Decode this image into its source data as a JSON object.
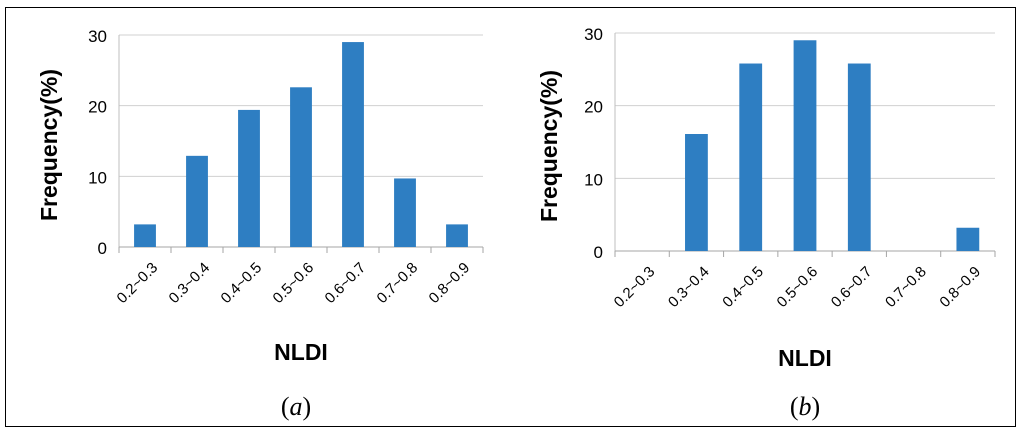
{
  "chart_data": [
    {
      "type": "bar",
      "categories": [
        "0.2~0.3",
        "0.3~0.4",
        "0.4~0.5",
        "0.5~0.6",
        "0.6~0.7",
        "0.7~0.8",
        "0.8~0.9"
      ],
      "values": [
        3.2,
        12.9,
        19.4,
        22.6,
        29.0,
        9.7,
        3.2
      ],
      "xlabel": "NLDI",
      "ylabel": "Frequency(%)",
      "ylim": [
        0,
        30
      ],
      "yticks": [
        "0",
        "10",
        "20",
        "30"
      ],
      "grid": true,
      "bar_color": "#2E7EC2",
      "caption_label": "a"
    },
    {
      "type": "bar",
      "categories": [
        "0.2~0.3",
        "0.3~0.4",
        "0.4~0.5",
        "0.5~0.6",
        "0.6~0.7",
        "0.7~0.8",
        "0.8~0.9"
      ],
      "values": [
        0,
        16.1,
        25.8,
        29.0,
        25.8,
        0,
        3.2
      ],
      "xlabel": "NLDI",
      "ylabel": "Frequency(%)",
      "ylim": [
        0,
        30
      ],
      "yticks": [
        "0",
        "10",
        "20",
        "30"
      ],
      "grid": true,
      "bar_color": "#2E7EC2",
      "caption_label": "b"
    }
  ]
}
